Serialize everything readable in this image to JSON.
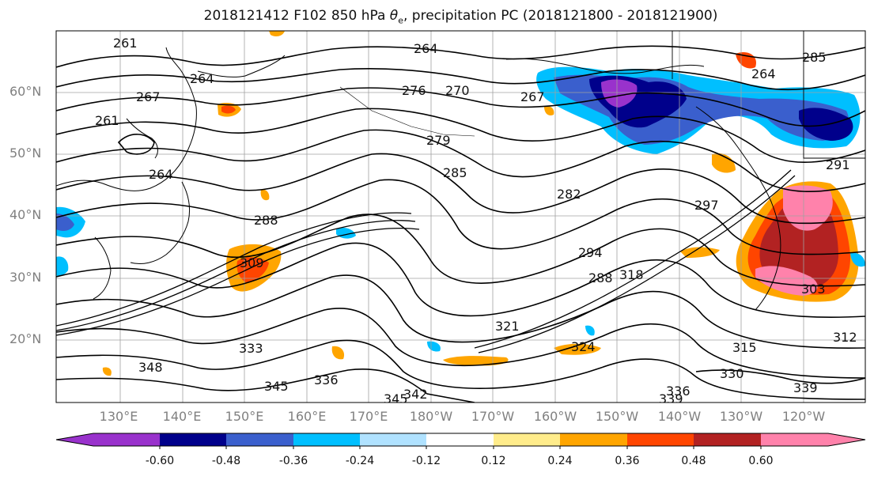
{
  "title": {
    "prefix": "2018121412 F102 850 hPa ",
    "theta": "θ",
    "theta_sub": "e",
    "suffix": ", precipitation PC (2018121800 - 2018121900)"
  },
  "map": {
    "lat_labels": [
      "60°N",
      "50°N",
      "40°N",
      "30°N",
      "20°N"
    ],
    "lon_labels": [
      "130°E",
      "140°E",
      "150°E",
      "160°E",
      "170°E",
      "180°W",
      "170°W",
      "160°W",
      "150°W",
      "140°W",
      "130°W",
      "120°W"
    ],
    "contour_labels": [
      "264",
      "261",
      "264",
      "267",
      "261",
      "264",
      "264",
      "270",
      "276",
      "267",
      "279",
      "285",
      "282",
      "297",
      "288",
      "294",
      "309",
      "318",
      "288",
      "303",
      "321",
      "324",
      "315",
      "312",
      "330",
      "333",
      "348",
      "336",
      "342",
      "345",
      "339",
      "336",
      "339",
      "345",
      "291",
      "285"
    ],
    "colors": {
      "ocean": "#ffffff",
      "contour": "#000000",
      "grid": "#a0a0a0"
    }
  },
  "colorbar": {
    "colors": [
      "#9932cc",
      "#00008b",
      "#3a5fcd",
      "#00bfff",
      "#b0e2ff",
      "#ffffff",
      "#ffec8b",
      "#ffa500",
      "#ff4500",
      "#b22222",
      "#ff82ab",
      "#ff82ab"
    ],
    "tick_labels": [
      "-0.60",
      "-0.48",
      "-0.36",
      "-0.24",
      "-0.12",
      "0.12",
      "0.24",
      "0.36",
      "0.48",
      "0.60"
    ]
  }
}
